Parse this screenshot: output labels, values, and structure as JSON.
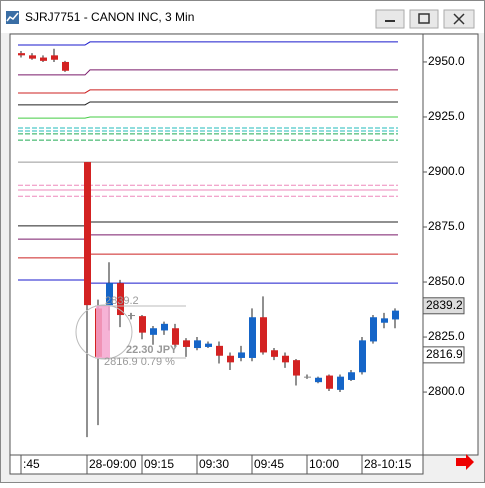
{
  "window_title": "SJRJ7751 - CANON INC, 3 Min",
  "chart_data": {
    "type": "candlestick",
    "categories": [
      ":45",
      null,
      null,
      null,
      null,
      null,
      "28-09:00",
      null,
      null,
      null,
      null,
      "09:15",
      null,
      null,
      null,
      null,
      "09:30",
      null,
      null,
      null,
      null,
      "09:45",
      null,
      null,
      null,
      null,
      "10:00",
      null,
      null,
      null,
      null,
      "28-10:15",
      null,
      null,
      null
    ],
    "open": [
      2954,
      2953,
      2952,
      2953,
      2950,
      null,
      2904.5,
      2838,
      2839.5,
      2849.5,
      2835,
      2834.5,
      2826,
      2828,
      2829,
      2823.5,
      2820,
      2820.5,
      2821,
      2816.5,
      2815.5,
      2815.5,
      2834,
      2819,
      2816.5,
      2814.5,
      2807,
      2804.5,
      2807.5,
      2801,
      2805.5,
      2809,
      2823,
      2831.5,
      2833
    ],
    "high": [
      2955,
      2954,
      2953,
      2956,
      2950.5,
      null,
      2904.5,
      2842,
      2859,
      2851,
      2836,
      2835,
      2830,
      2832,
      2831,
      2824.5,
      2825,
      2823,
      2823,
      2818,
      2821,
      2838,
      2843.5,
      2820,
      2818,
      2815,
      2808,
      2807,
      2808,
      2808,
      2810,
      2825,
      2835,
      2836,
      2838
    ],
    "low": [
      2952,
      2951,
      2950,
      2950,
      2945.5,
      null,
      2779.5,
      2785,
      2828,
      2829.5,
      2833,
      2824,
      2821.5,
      2826,
      2820,
      2816,
      2819,
      2820,
      2813,
      2810,
      2814,
      2814,
      2817,
      2814.5,
      2811,
      2803,
      2806,
      2804,
      2800.5,
      2800,
      2805,
      2808,
      2822,
      2829,
      2829
    ],
    "close": [
      2953,
      2951.5,
      2950.5,
      2951,
      2946,
      null,
      2839.5,
      2816,
      2849.5,
      2835,
      2835,
      2827,
      2829,
      2831,
      2821.5,
      2820.5,
      2823.5,
      2822,
      2816.5,
      2813.5,
      2818,
      2834,
      2818,
      2816,
      2813.5,
      2807.5,
      2807,
      2806.5,
      2801.5,
      2807,
      2809,
      2823.5,
      2834,
      2833.5,
      2837
    ],
    "up_color": "#1565c8",
    "down_color": "#d32222",
    "flat_color": "#888888",
    "levels": [
      {
        "color": "#1a1acc",
        "values": [
          2957.7,
          2959.1
        ]
      },
      {
        "color": "#7a1a6a",
        "values": [
          2944.1,
          2946.4
        ]
      },
      {
        "color": "#cc2222",
        "values": [
          2935.9,
          2937.3
        ]
      },
      {
        "color": "#222222",
        "values": [
          2930.5,
          2931.8
        ]
      },
      {
        "color": "#44cc44",
        "values": [
          2924.5,
          2925
        ]
      },
      {
        "color": "#22bbbb",
        "values": [
          2920,
          2920
        ],
        "dashed": true
      },
      {
        "color": "#22bbbb",
        "values": [
          2918.6,
          2918.6
        ],
        "dashed": true
      },
      {
        "color": "#22aa55",
        "values": [
          2917.3,
          2917.3
        ],
        "dashed": true
      },
      {
        "color": "#22aa55",
        "values": [
          2914.5,
          2914.5
        ],
        "dashed": true
      },
      {
        "color": "#999999",
        "values": [
          2904.5,
          2904.5
        ]
      },
      {
        "color": "#ee88bb",
        "values": [
          2894,
          2894
        ],
        "dashed": true
      },
      {
        "color": "#ee88bb",
        "values": [
          2891.8,
          2891.8
        ]
      },
      {
        "color": "#ee88bb",
        "values": [
          2889,
          2889
        ],
        "dashed": true
      },
      {
        "color": "#222222",
        "values": [
          2875.5,
          2877.3
        ]
      },
      {
        "color": "#7a1a6a",
        "values": [
          2869.5,
          2871.4
        ]
      },
      {
        "color": "#cc2222",
        "values": [
          2861,
          2862.7
        ]
      },
      {
        "color": "#1a1acc",
        "values": [
          2850.9,
          2849.5
        ]
      }
    ],
    "ylim": [
      2771.4,
      2962.7
    ],
    "yticks": [
      {
        "value": 2800,
        "label": "2800.0"
      },
      {
        "value": 2825,
        "label": "2825.0"
      },
      {
        "value": 2850,
        "label": "2850.0"
      },
      {
        "value": 2875,
        "label": "2875.0"
      },
      {
        "value": 2900,
        "label": "2900.0"
      },
      {
        "value": 2925,
        "label": "2925.0"
      },
      {
        "value": 2950,
        "label": "2950.0"
      }
    ],
    "price_tags": [
      2839.2,
      2816.9
    ],
    "annotations": [
      "2839.2",
      "22.30 JPY",
      "2816.9 0.79 %"
    ]
  }
}
